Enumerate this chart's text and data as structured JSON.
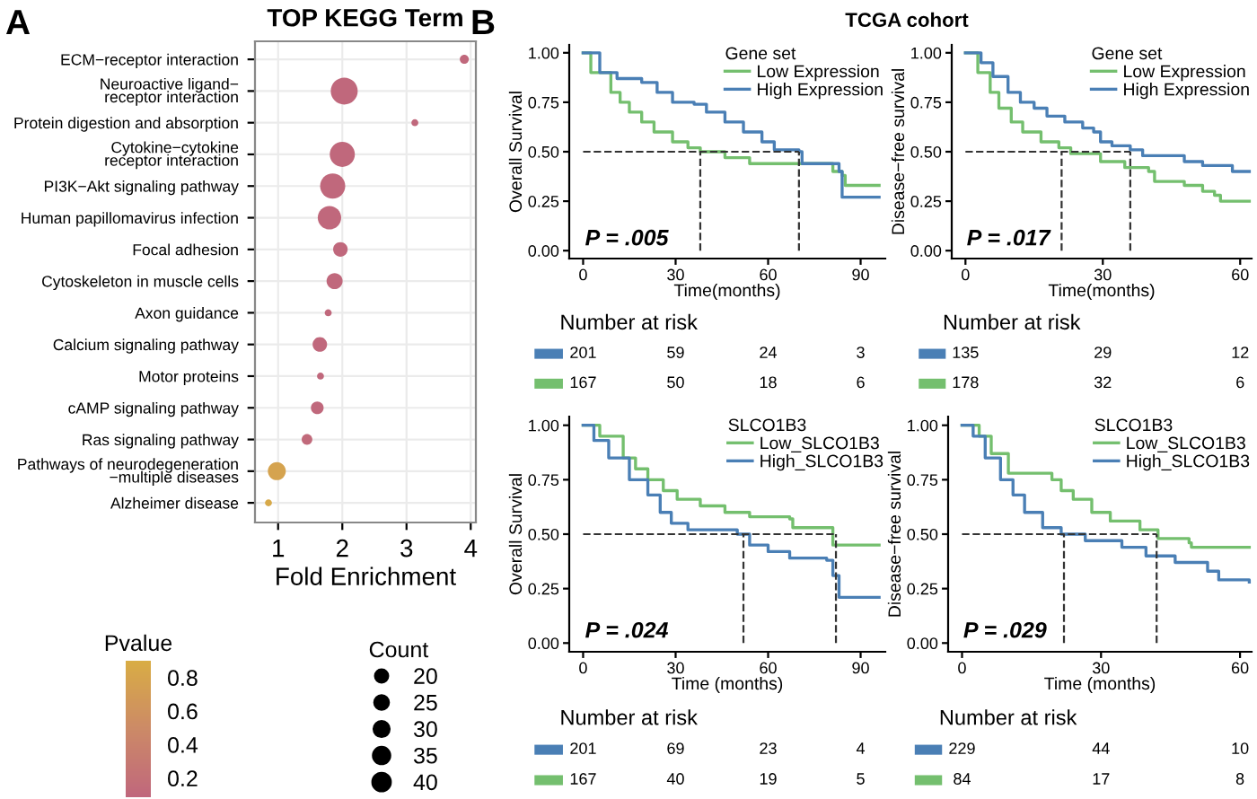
{
  "chart_data": [
    {
      "type": "scatter",
      "orientation": "horizontal",
      "title": "TOP KEGG Term",
      "xlabel": "Fold Enrichment",
      "annotations": [
        "A"
      ],
      "categories": [
        "ECM−receptor interaction",
        "Neuroactive ligand−\nreceptor interaction",
        "Protein digestion and absorption",
        "Cytokine−cytokine\nreceptor interaction",
        "PI3K−Akt signaling pathway",
        "Human papillomavirus infection",
        "Focal adhesion",
        "Cytoskeleton in muscle cells",
        "Axon guidance",
        "Calcium signaling pathway",
        "Motor proteins",
        "cAMP signaling pathway",
        "Ras signaling pathway",
        "Pathways of neurodegeneration\n−multiple diseases",
        "Alzheimer disease"
      ],
      "values": [
        3.9,
        2.03,
        3.13,
        2.0,
        1.85,
        1.8,
        1.97,
        1.88,
        1.78,
        1.65,
        1.66,
        1.61,
        1.45,
        0.98,
        0.85
      ],
      "sizes": [
        10,
        90,
        6,
        78,
        78,
        68,
        26,
        32,
        6,
        26,
        6,
        20,
        14,
        40,
        6
      ],
      "size_legend": [
        20,
        25,
        30,
        35,
        40
      ],
      "legend_title": "Count",
      "cvalues": [
        0.1,
        0.1,
        0.1,
        0.1,
        0.1,
        0.1,
        0.1,
        0.1,
        0.1,
        0.1,
        0.1,
        0.1,
        0.12,
        0.78,
        0.85
      ],
      "clim": [
        0.086,
        0.9
      ],
      "cticks": [
        0.2,
        0.4,
        0.6,
        0.8
      ],
      "clabel": "Pvalue",
      "xlim": [
        0.64,
        4.08
      ],
      "xticks": [
        1,
        2,
        3,
        4
      ],
      "grid": true
    },
    {
      "type": "step",
      "title": "TCGA cohort",
      "xlabel": "Time(months)",
      "ylabel": "Overall Survival",
      "legend_title": "Gene set",
      "legend": "top right",
      "annotations": [
        "B",
        "P = .005"
      ],
      "series": [
        {
          "name": "Low Expression",
          "color": "#74bf6e",
          "x": [
            0,
            2.5,
            9,
            12,
            15,
            19,
            23,
            29,
            34,
            38,
            46,
            54,
            80,
            81,
            84,
            85,
            96
          ],
          "values": [
            1.0,
            0.9,
            0.8,
            0.75,
            0.7,
            0.65,
            0.6,
            0.55,
            0.52,
            0.5,
            0.47,
            0.44,
            0.44,
            0.4,
            0.38,
            0.33,
            0.33
          ]
        },
        {
          "name": "High Expression",
          "color": "#4a7fb5",
          "x": [
            0,
            5.4,
            11,
            19,
            24,
            29,
            36,
            40,
            46,
            52,
            58,
            62,
            70,
            71,
            81,
            83,
            84,
            96
          ],
          "values": [
            1.0,
            0.9,
            0.87,
            0.85,
            0.8,
            0.75,
            0.74,
            0.7,
            0.65,
            0.6,
            0.55,
            0.51,
            0.5,
            0.44,
            0.44,
            0.4,
            0.27,
            0.27
          ]
        }
      ],
      "ref_lines": [
        {
          "axis": "y",
          "value": 0.5,
          "line_style": "dashed",
          "color": "#333333"
        },
        {
          "axis": "x",
          "value": 38,
          "line_style": "dashed",
          "color": "#333333"
        },
        {
          "axis": "x",
          "value": 70,
          "line_style": "dashed",
          "color": "#333333"
        }
      ],
      "xlim": [
        -4.5,
        98
      ],
      "xticks": [
        0,
        30,
        60,
        90
      ],
      "ylim": [
        -0.04,
        1.04
      ],
      "yticks": [
        {
          "value": 0,
          "label": "0.00"
        },
        {
          "value": 0.25,
          "label": "0.25"
        },
        {
          "value": 0.5,
          "label": "0.50"
        },
        {
          "value": 0.75,
          "label": "0.75"
        },
        {
          "value": 1,
          "label": "1.00"
        }
      ]
    },
    {
      "type": "other",
      "title": "Number at risk",
      "categories": [
        null,
        null,
        null,
        null
      ],
      "annotations": [
        "201",
        "59",
        "24",
        "3",
        "167",
        "50",
        "18",
        "6"
      ]
    },
    {
      "type": "step",
      "xlabel": "Time(months)",
      "ylabel": "Disease−free survival",
      "legend_title": "Gene set",
      "legend": "top right",
      "annotations": [
        "P = .017"
      ],
      "series": [
        {
          "name": "Low Expression",
          "color": "#74bf6e",
          "x": [
            0,
            2.7,
            5.4,
            7.3,
            10,
            12.5,
            16.5,
            20.4,
            23,
            29.5,
            34.8,
            40,
            41.3,
            47.8,
            51.8,
            54.4,
            55.7,
            62
          ],
          "values": [
            1.0,
            0.9,
            0.8,
            0.72,
            0.65,
            0.6,
            0.55,
            0.52,
            0.49,
            0.45,
            0.42,
            0.4,
            0.35,
            0.33,
            0.3,
            0.28,
            0.25,
            0.25
          ]
        },
        {
          "name": "High Expression",
          "color": "#4a7fb5",
          "x": [
            0,
            3.4,
            6,
            9.3,
            12,
            15,
            17.8,
            21.7,
            25.6,
            28,
            29.5,
            32,
            36,
            38.7,
            46.5,
            47.8,
            51.8,
            58.3,
            62
          ],
          "values": [
            1.0,
            0.95,
            0.88,
            0.8,
            0.75,
            0.72,
            0.68,
            0.65,
            0.62,
            0.6,
            0.55,
            0.53,
            0.51,
            0.48,
            0.48,
            0.45,
            0.43,
            0.4,
            0.4
          ]
        }
      ],
      "ref_lines": [
        {
          "axis": "y",
          "value": 0.5,
          "line_style": "dashed",
          "color": "#333333"
        },
        {
          "axis": "x",
          "value": 21,
          "line_style": "dashed",
          "color": "#333333"
        },
        {
          "axis": "x",
          "value": 36,
          "line_style": "dashed",
          "color": "#333333"
        }
      ],
      "xlim": [
        -3,
        62.5
      ],
      "xticks": [
        0,
        30,
        60
      ],
      "ylim": [
        -0.04,
        1.04
      ],
      "yticks": [
        {
          "value": 0,
          "label": "0.00"
        },
        {
          "value": 0.25,
          "label": "0.25"
        },
        {
          "value": 0.5,
          "label": "0.50"
        },
        {
          "value": 0.75,
          "label": "0.75"
        },
        {
          "value": 1,
          "label": "1.00"
        }
      ]
    },
    {
      "type": "other",
      "title": "Number at risk",
      "categories": [
        null,
        null,
        null
      ],
      "annotations": [
        "135",
        "29",
        "12",
        "178",
        "32",
        "6"
      ]
    },
    {
      "type": "step",
      "xlabel": "Time (months)",
      "ylabel": "Overall Survival",
      "legend_title": "SLCO1B3",
      "legend": "top right",
      "annotations": [
        "P = .024"
      ],
      "series": [
        {
          "name": "Low_SLCO1B3",
          "color": "#74bf6e",
          "x": [
            0,
            5.4,
            13,
            17,
            21,
            26,
            30.5,
            38,
            46,
            54,
            67,
            68,
            80,
            81,
            96
          ],
          "values": [
            1.0,
            0.95,
            0.85,
            0.8,
            0.75,
            0.7,
            0.66,
            0.63,
            0.6,
            0.58,
            0.57,
            0.53,
            0.53,
            0.45,
            0.45
          ]
        },
        {
          "name": "High_SLCO1B3",
          "color": "#4a7fb5",
          "x": [
            0,
            3.5,
            8.3,
            15,
            21,
            25,
            28.6,
            34,
            50,
            54,
            60,
            67,
            79,
            81,
            83,
            96
          ],
          "values": [
            1.0,
            0.93,
            0.85,
            0.75,
            0.68,
            0.6,
            0.55,
            0.52,
            0.5,
            0.45,
            0.42,
            0.39,
            0.38,
            0.31,
            0.21,
            0.21
          ]
        }
      ],
      "ref_lines": [
        {
          "axis": "y",
          "value": 0.5,
          "line_style": "dashed",
          "color": "#333333"
        },
        {
          "axis": "x",
          "value": 52,
          "line_style": "dashed",
          "color": "#333333"
        },
        {
          "axis": "x",
          "value": 82,
          "line_style": "dashed",
          "color": "#333333"
        }
      ],
      "xlim": [
        -4.5,
        98
      ],
      "xticks": [
        0,
        30,
        60,
        90
      ],
      "ylim": [
        -0.04,
        1.04
      ],
      "yticks": [
        {
          "value": 0,
          "label": "0.00"
        },
        {
          "value": 0.25,
          "label": "0.25"
        },
        {
          "value": 0.5,
          "label": "0.50"
        },
        {
          "value": 0.75,
          "label": "0.75"
        },
        {
          "value": 1,
          "label": "1.00"
        }
      ]
    },
    {
      "type": "other",
      "title": "Number at risk",
      "categories": [
        null,
        null,
        null,
        null
      ],
      "annotations": [
        "201",
        "69",
        "23",
        "4",
        "167",
        "40",
        "19",
        "5"
      ]
    },
    {
      "type": "step",
      "xlabel": "Time (months)",
      "ylabel": "Disease−free survival",
      "legend_title": "SLCO1B3",
      "legend": "top right",
      "annotations": [
        "P = .029"
      ],
      "series": [
        {
          "name": "Low_SLCO1B3",
          "color": "#74bf6e",
          "x": [
            0,
            3.7,
            6.3,
            10,
            19.4,
            21.4,
            24,
            28,
            32,
            38.4,
            42.3,
            49,
            49.5,
            62
          ],
          "values": [
            1.0,
            0.95,
            0.87,
            0.78,
            0.75,
            0.7,
            0.66,
            0.6,
            0.56,
            0.52,
            0.48,
            0.46,
            0.44,
            0.44
          ]
        },
        {
          "name": "High_SLCO1B3",
          "color": "#4a7fb5",
          "x": [
            0,
            2.4,
            5,
            8.3,
            11,
            13.5,
            17.4,
            21.4,
            26.6,
            34.5,
            39.7,
            46,
            53,
            55.4,
            62
          ],
          "values": [
            1.0,
            0.95,
            0.85,
            0.75,
            0.68,
            0.6,
            0.53,
            0.5,
            0.47,
            0.44,
            0.4,
            0.37,
            0.33,
            0.29,
            0.28
          ]
        }
      ],
      "ref_lines": [
        {
          "axis": "y",
          "value": 0.5,
          "line_style": "dashed",
          "color": "#333333"
        },
        {
          "axis": "x",
          "value": 22,
          "line_style": "dashed",
          "color": "#333333"
        },
        {
          "axis": "x",
          "value": 42,
          "line_style": "dashed",
          "color": "#333333"
        }
      ],
      "xlim": [
        -3,
        62.5
      ],
      "xticks": [
        0,
        30,
        60
      ],
      "ylim": [
        -0.04,
        1.04
      ],
      "yticks": [
        {
          "value": 0,
          "label": "0.00"
        },
        {
          "value": 0.25,
          "label": "0.25"
        },
        {
          "value": 0.5,
          "label": "0.50"
        },
        {
          "value": 0.75,
          "label": "0.75"
        },
        {
          "value": 1,
          "label": "1.00"
        }
      ]
    },
    {
      "type": "other",
      "title": "Number at risk",
      "categories": [
        null,
        null,
        null
      ],
      "annotations": [
        "229",
        "44",
        "10",
        "84",
        "17",
        "8"
      ]
    }
  ]
}
